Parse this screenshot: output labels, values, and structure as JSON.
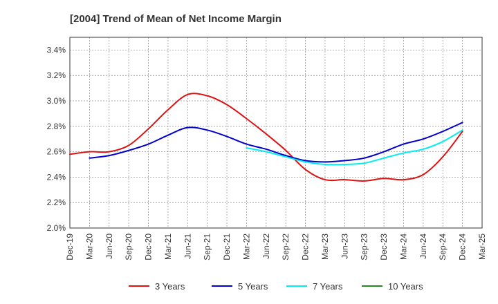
{
  "chart_data": {
    "type": "line",
    "title": "[2004]  Trend of Mean of Net Income Margin",
    "xlabel": "",
    "ylabel": "",
    "x": [
      "Dec-19",
      "Mar-20",
      "Jun-20",
      "Sep-20",
      "Dec-20",
      "Mar-21",
      "Jun-21",
      "Sep-21",
      "Dec-21",
      "Mar-22",
      "Jun-22",
      "Sep-22",
      "Dec-22",
      "Mar-23",
      "Jun-23",
      "Sep-23",
      "Dec-23",
      "Mar-24",
      "Jun-24",
      "Sep-24",
      "Dec-24",
      "Mar-25"
    ],
    "ylim": [
      2.0,
      3.5
    ],
    "yticks": [
      2.0,
      2.2,
      2.4,
      2.6,
      2.8,
      3.0,
      3.2,
      3.4
    ],
    "ytick_labels": [
      "2.0%",
      "2.2%",
      "2.4%",
      "2.6%",
      "2.8%",
      "3.0%",
      "3.2%",
      "3.4%"
    ],
    "grid": true,
    "legend_position": "bottom",
    "series": [
      {
        "name": "3 Years",
        "color": "#dd1111",
        "values": [
          2.58,
          2.6,
          2.6,
          2.65,
          2.78,
          2.93,
          3.05,
          3.04,
          2.97,
          2.86,
          2.74,
          2.61,
          2.46,
          2.38,
          2.38,
          2.37,
          2.39,
          2.38,
          2.42,
          2.56,
          2.76,
          null
        ]
      },
      {
        "name": "5 Years",
        "color": "#0000cc",
        "values": [
          null,
          2.55,
          2.57,
          2.61,
          2.66,
          2.73,
          2.79,
          2.77,
          2.72,
          2.66,
          2.62,
          2.57,
          2.53,
          2.52,
          2.53,
          2.55,
          2.6,
          2.66,
          2.7,
          2.76,
          2.83,
          null
        ]
      },
      {
        "name": "7 Years",
        "color": "#00eeee",
        "values": [
          null,
          null,
          null,
          null,
          null,
          null,
          null,
          null,
          null,
          2.63,
          2.6,
          2.56,
          2.52,
          2.5,
          2.5,
          2.51,
          2.55,
          2.59,
          2.62,
          2.68,
          2.77,
          null
        ]
      },
      {
        "name": "10 Years",
        "color": "#228822",
        "values": [
          null,
          null,
          null,
          null,
          null,
          null,
          null,
          null,
          null,
          null,
          null,
          null,
          null,
          null,
          null,
          null,
          null,
          null,
          null,
          null,
          null,
          null
        ]
      }
    ]
  }
}
